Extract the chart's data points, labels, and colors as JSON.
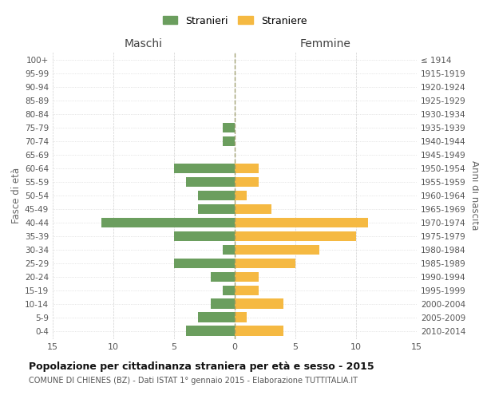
{
  "age_groups": [
    "0-4",
    "5-9",
    "10-14",
    "15-19",
    "20-24",
    "25-29",
    "30-34",
    "35-39",
    "40-44",
    "45-49",
    "50-54",
    "55-59",
    "60-64",
    "65-69",
    "70-74",
    "75-79",
    "80-84",
    "85-89",
    "90-94",
    "95-99",
    "100+"
  ],
  "birth_years": [
    "2010-2014",
    "2005-2009",
    "2000-2004",
    "1995-1999",
    "1990-1994",
    "1985-1989",
    "1980-1984",
    "1975-1979",
    "1970-1974",
    "1965-1969",
    "1960-1964",
    "1955-1959",
    "1950-1954",
    "1945-1949",
    "1940-1944",
    "1935-1939",
    "1930-1934",
    "1925-1929",
    "1920-1924",
    "1915-1919",
    "≤ 1914"
  ],
  "maschi": [
    4,
    3,
    2,
    1,
    2,
    5,
    1,
    5,
    11,
    3,
    3,
    4,
    5,
    0,
    1,
    1,
    0,
    0,
    0,
    0,
    0
  ],
  "femmine": [
    4,
    1,
    4,
    2,
    2,
    5,
    7,
    10,
    11,
    3,
    1,
    2,
    2,
    0,
    0,
    0,
    0,
    0,
    0,
    0,
    0
  ],
  "maschi_color": "#6b9e5e",
  "femmine_color": "#f5b942",
  "xlim": 15,
  "title": "Popolazione per cittadinanza straniera per età e sesso - 2015",
  "subtitle": "COMUNE DI CHIENES (BZ) - Dati ISTAT 1° gennaio 2015 - Elaborazione TUTTITALIA.IT",
  "xlabel_left": "Maschi",
  "xlabel_right": "Femmine",
  "ylabel_left": "Fasce di età",
  "ylabel_right": "Anni di nascita",
  "legend_stranieri": "Stranieri",
  "legend_straniere": "Straniere",
  "bg_color": "#ffffff",
  "grid_color": "#cccccc",
  "bar_height": 0.75,
  "tick_labels": [
    "15",
    "10",
    "5",
    "0",
    "5",
    "10",
    "15"
  ],
  "tick_positions": [
    -15,
    -10,
    -5,
    0,
    5,
    10,
    15
  ]
}
